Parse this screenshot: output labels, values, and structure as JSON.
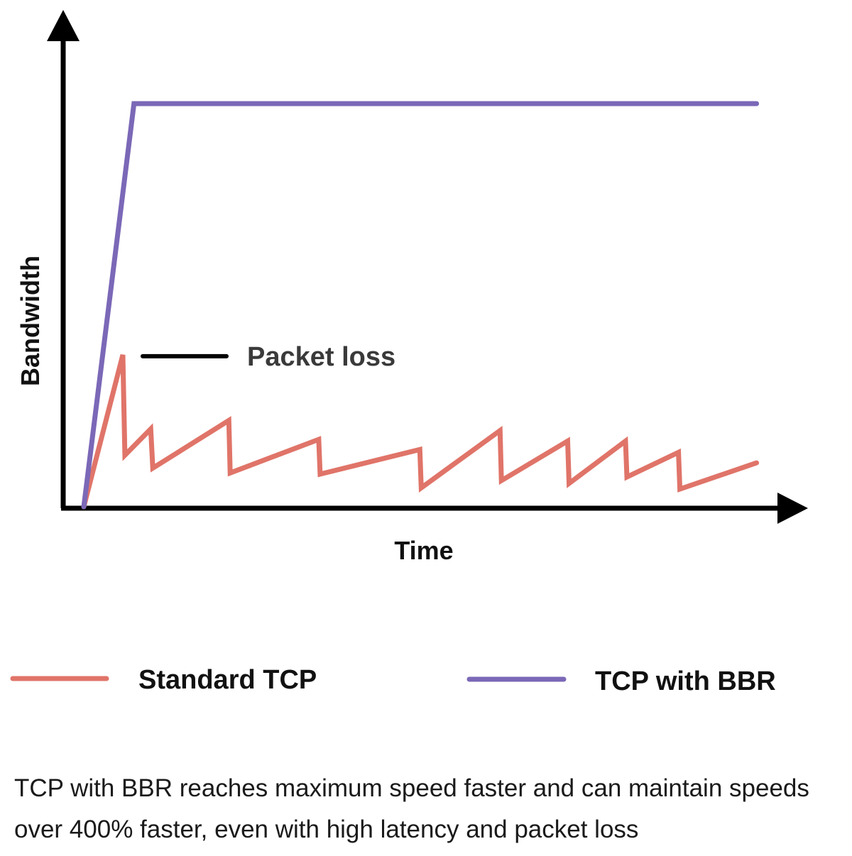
{
  "chart_data": {
    "type": "line",
    "xlabel": "Time",
    "ylabel": "Bandwidth",
    "x_range": [
      0,
      100
    ],
    "y_range": [
      0,
      100
    ],
    "series": [
      {
        "name": "TCP with BBR",
        "color": "#7b68b7",
        "points": [
          [
            0,
            0
          ],
          [
            7.2,
            100
          ],
          [
            96.5,
            100
          ]
        ]
      },
      {
        "name": "Standard TCP",
        "color": "#e07469",
        "points": [
          [
            0,
            0
          ],
          [
            5.6,
            37.7
          ],
          [
            5.9,
            12.8
          ],
          [
            9.6,
            19.3
          ],
          [
            9.9,
            9.6
          ],
          [
            20.8,
            21.4
          ],
          [
            21.0,
            8.4
          ],
          [
            33.7,
            16.7
          ],
          [
            33.9,
            8.1
          ],
          [
            48.2,
            14.2
          ],
          [
            48.4,
            4.7
          ],
          [
            59.7,
            18.9
          ],
          [
            59.9,
            6.5
          ],
          [
            69.4,
            16.3
          ],
          [
            69.6,
            5.8
          ],
          [
            77.7,
            16.3
          ],
          [
            77.9,
            7.4
          ],
          [
            85.3,
            13.5
          ],
          [
            85.5,
            4.4
          ],
          [
            96.5,
            10.9
          ]
        ]
      }
    ],
    "annotations": [
      {
        "text": "Packet loss",
        "x": 5.6,
        "y": 37.7
      }
    ],
    "legend": {
      "placement": "bottom",
      "items": [
        {
          "label": "Standard TCP",
          "color": "#e07469"
        },
        {
          "label": "TCP with BBR",
          "color": "#7b68b7"
        }
      ]
    }
  },
  "caption": "TCP with BBR reaches maximum speed faster and can maintain speeds over 400% faster, even with high latency and packet loss"
}
